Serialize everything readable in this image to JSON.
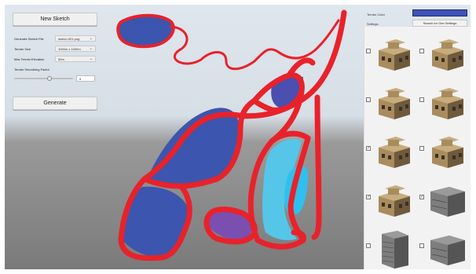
{
  "left_panel": {
    "new_sketch_label": "New Sketch",
    "fields": [
      {
        "label": "Generate Sketch File",
        "value": "sketch-001.png"
      },
      {
        "label": "Terrain Size",
        "value": "1000m x 1000m"
      },
      {
        "label": "Max Terrain Elevation",
        "value": "50m"
      }
    ],
    "smoothing_label": "Terrain Smoothing Factor",
    "smoothing_value": "5",
    "smoothing_fraction": 0.6,
    "generate_label": "Generate"
  },
  "right_panel": {
    "terrain_color_label": "Terrain Color",
    "terrain_color": "#3e53b2",
    "settings_label": "Settings",
    "search_button_label": "Search for Gen Settings",
    "buildings": [
      {
        "checked": false,
        "type": "mediterranean-villa"
      },
      {
        "checked": false,
        "type": "tan-two-story-house"
      },
      {
        "checked": false,
        "type": "flat-roof-house"
      },
      {
        "checked": false,
        "type": "rooftop-tower-house"
      },
      {
        "checked": true,
        "type": "low-tan-house"
      },
      {
        "checked": false,
        "type": "walled-villa"
      },
      {
        "checked": true,
        "type": "two-story-villa"
      },
      {
        "checked": true,
        "type": "gray-office-block"
      },
      {
        "checked": false,
        "type": "tall-gray-office"
      },
      {
        "checked": false,
        "type": "gray-warehouse"
      }
    ]
  },
  "colors": {
    "road": "#e8222b",
    "region_blue": "#3c55ae",
    "region_purple": "#7a4fb0",
    "water_light": "#55c6e8",
    "water_bright": "#2fc0ee"
  }
}
